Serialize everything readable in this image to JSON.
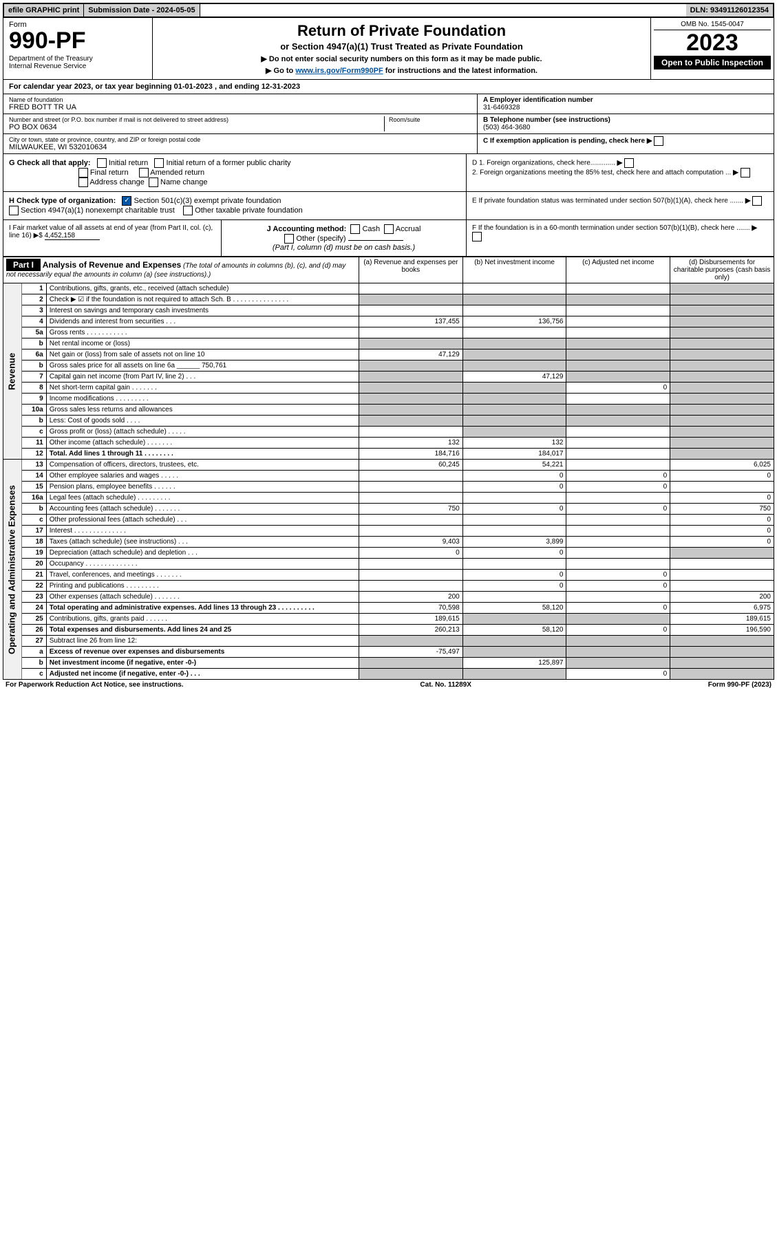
{
  "top": {
    "efile": "efile GRAPHIC print",
    "submission": "Submission Date - 2024-05-05",
    "dln": "DLN: 93491126012354"
  },
  "header": {
    "form_label": "Form",
    "form_number": "990-PF",
    "dept": "Department of the Treasury\nInternal Revenue Service",
    "title": "Return of Private Foundation",
    "subtitle": "or Section 4947(a)(1) Trust Treated as Private Foundation",
    "note1": "▶ Do not enter social security numbers on this form as it may be made public.",
    "note2_pre": "▶ Go to ",
    "note2_link": "www.irs.gov/Form990PF",
    "note2_post": " for instructions and the latest information.",
    "omb": "OMB No. 1545-0047",
    "taxyear": "2023",
    "open_pub": "Open to Public Inspection"
  },
  "cal_year": "For calendar year 2023, or tax year beginning 01-01-2023           , and ending 12-31-2023",
  "name_block": {
    "label": "Name of foundation",
    "value": "FRED BOTT TR UA",
    "addr_label": "Number and street (or P.O. box number if mail is not delivered to street address)",
    "addr": "PO BOX 0634",
    "room_label": "Room/suite",
    "city_label": "City or town, state or province, country, and ZIP or foreign postal code",
    "city": "MILWAUKEE, WI  532010634"
  },
  "right_info": {
    "a_label": "A Employer identification number",
    "a_val": "31-6469328",
    "b_label": "B Telephone number (see instructions)",
    "b_val": "(503) 464-3680",
    "c_label": "C If exemption application is pending, check here",
    "d1": "D 1. Foreign organizations, check here.............",
    "d2": "2. Foreign organizations meeting the 85% test, check here and attach computation ...",
    "e": "E  If private foundation status was terminated under section 507(b)(1)(A), check here .......",
    "f": "F  If the foundation is in a 60-month termination under section 507(b)(1)(B), check here ......."
  },
  "g": {
    "label": "G Check all that apply:",
    "opts": [
      "Initial return",
      "Initial return of a former public charity",
      "Final return",
      "Amended return",
      "Address change",
      "Name change"
    ]
  },
  "h": {
    "label": "H Check type of organization:",
    "opt1": "Section 501(c)(3) exempt private foundation",
    "opt2": "Section 4947(a)(1) nonexempt charitable trust",
    "opt3": "Other taxable private foundation"
  },
  "i": {
    "label": "I Fair market value of all assets at end of year (from Part II, col. (c), line 16) ▶$",
    "value": "4,452,158"
  },
  "j": {
    "label": "J Accounting method:",
    "cash": "Cash",
    "accrual": "Accrual",
    "other": "Other (specify)",
    "note": "(Part I, column (d) must be on cash basis.)"
  },
  "partI": {
    "tag": "Part I",
    "title": "Analysis of Revenue and Expenses",
    "sub": "(The total of amounts in columns (b), (c), and (d) may not necessarily equal the amounts in column (a) (see instructions).)",
    "cols": {
      "a": "(a)   Revenue and expenses per books",
      "b": "(b)   Net investment income",
      "c": "(c)   Adjusted net income",
      "d": "(d)   Disbursements for charitable purposes (cash basis only)"
    }
  },
  "side_labels": {
    "rev": "Revenue",
    "exp": "Operating and Administrative Expenses"
  },
  "rows": [
    {
      "n": "1",
      "desc": "Contributions, gifts, grants, etc., received (attach schedule)",
      "a": "",
      "b": "",
      "c": "",
      "d": "",
      "shade_d": true
    },
    {
      "n": "2",
      "desc": "Check ▶ ☑ if the foundation is not required to attach Sch. B     .  .  .  .  .  .  .  .  .  .  .  .  .  .  .",
      "a": "",
      "b": "",
      "c": "",
      "d": "",
      "shade_all": true
    },
    {
      "n": "3",
      "desc": "Interest on savings and temporary cash investments",
      "a": "",
      "b": "",
      "c": "",
      "d": "",
      "shade_d": true
    },
    {
      "n": "4",
      "desc": "Dividends and interest from securities   .   .   .",
      "a": "137,455",
      "b": "136,756",
      "c": "",
      "d": "",
      "shade_d": true
    },
    {
      "n": "5a",
      "desc": "Gross rents   .   .   .   .   .   .   .   .   .   .   .",
      "a": "",
      "b": "",
      "c": "",
      "d": "",
      "shade_d": true
    },
    {
      "n": "b",
      "desc": "Net rental income or (loss)",
      "a": "",
      "b": "",
      "c": "",
      "d": "",
      "shade_all": true
    },
    {
      "n": "6a",
      "desc": "Net gain or (loss) from sale of assets not on line 10",
      "a": "47,129",
      "b": "",
      "c": "",
      "d": "",
      "shade_bcd": true
    },
    {
      "n": "b",
      "desc": "Gross sales price for all assets on line 6a ______ 750,761",
      "a": "",
      "b": "",
      "c": "",
      "d": "",
      "shade_all": true
    },
    {
      "n": "7",
      "desc": "Capital gain net income (from Part IV, line 2)   .   .   .",
      "a": "",
      "b": "47,129",
      "c": "",
      "d": "",
      "shade_a": true,
      "shade_cd": true
    },
    {
      "n": "8",
      "desc": "Net short-term capital gain   .   .   .   .   .   .   .",
      "a": "",
      "b": "",
      "c": "0",
      "d": "",
      "shade_ab": true,
      "shade_d": true
    },
    {
      "n": "9",
      "desc": "Income modifications   .   .   .   .   .   .   .   .   .",
      "a": "",
      "b": "",
      "c": "",
      "d": "",
      "shade_ab": true,
      "shade_d": true
    },
    {
      "n": "10a",
      "desc": "Gross sales less returns and allowances",
      "a": "",
      "b": "",
      "c": "",
      "d": "",
      "shade_all": true
    },
    {
      "n": "b",
      "desc": "Less: Cost of goods sold   .   .   .   .",
      "a": "",
      "b": "",
      "c": "",
      "d": "",
      "shade_all": true
    },
    {
      "n": "c",
      "desc": "Gross profit or (loss) (attach schedule)   .   .   .   .   .",
      "a": "",
      "b": "",
      "c": "",
      "d": "",
      "shade_b": true,
      "shade_d": true
    },
    {
      "n": "11",
      "desc": "Other income (attach schedule)   .   .   .   .   .   .   .",
      "a": "132",
      "b": "132",
      "c": "",
      "d": "",
      "shade_d": true
    },
    {
      "n": "12",
      "desc": "Total. Add lines 1 through 11   .   .   .   .   .   .   .   .",
      "a": "184,716",
      "b": "184,017",
      "c": "",
      "d": "",
      "bold": true,
      "shade_d": true
    },
    {
      "n": "13",
      "desc": "Compensation of officers, directors, trustees, etc.",
      "a": "60,245",
      "b": "54,221",
      "c": "",
      "d": "6,025"
    },
    {
      "n": "14",
      "desc": "Other employee salaries and wages   .   .   .   .   .",
      "a": "",
      "b": "0",
      "c": "0",
      "d": "0"
    },
    {
      "n": "15",
      "desc": "Pension plans, employee benefits   .   .   .   .   .   .",
      "a": "",
      "b": "0",
      "c": "0",
      "d": ""
    },
    {
      "n": "16a",
      "desc": "Legal fees (attach schedule)  .   .   .   .   .   .   .   .   .",
      "a": "",
      "b": "",
      "c": "",
      "d": "0"
    },
    {
      "n": "b",
      "desc": "Accounting fees (attach schedule)  .   .   .   .   .   .   .",
      "a": "750",
      "b": "0",
      "c": "0",
      "d": "750"
    },
    {
      "n": "c",
      "desc": "Other professional fees (attach schedule)   .   .   .",
      "a": "",
      "b": "",
      "c": "",
      "d": "0"
    },
    {
      "n": "17",
      "desc": "Interest   .   .   .   .   .   .   .   .   .   .   .   .   .   .",
      "a": "",
      "b": "",
      "c": "",
      "d": "0"
    },
    {
      "n": "18",
      "desc": "Taxes (attach schedule) (see instructions)   .   .   .",
      "a": "9,403",
      "b": "3,899",
      "c": "",
      "d": "0"
    },
    {
      "n": "19",
      "desc": "Depreciation (attach schedule) and depletion   .   .   .",
      "a": "0",
      "b": "0",
      "c": "",
      "d": "",
      "shade_d": true
    },
    {
      "n": "20",
      "desc": "Occupancy  .   .   .   .   .   .   .   .   .   .   .   .   .   .",
      "a": "",
      "b": "",
      "c": "",
      "d": ""
    },
    {
      "n": "21",
      "desc": "Travel, conferences, and meetings  .   .   .   .   .   .   .",
      "a": "",
      "b": "0",
      "c": "0",
      "d": ""
    },
    {
      "n": "22",
      "desc": "Printing and publications  .   .   .   .   .   .   .   .   .",
      "a": "",
      "b": "0",
      "c": "0",
      "d": ""
    },
    {
      "n": "23",
      "desc": "Other expenses (attach schedule)  .   .   .   .   .   .   .",
      "a": "200",
      "b": "",
      "c": "",
      "d": "200"
    },
    {
      "n": "24",
      "desc": "Total operating and administrative expenses. Add lines 13 through 23   .   .   .   .   .   .   .   .   .   .",
      "a": "70,598",
      "b": "58,120",
      "c": "0",
      "d": "6,975",
      "bold": true
    },
    {
      "n": "25",
      "desc": "Contributions, gifts, grants paid   .   .   .   .   .   .",
      "a": "189,615",
      "b": "",
      "c": "",
      "d": "189,615",
      "shade_bc": true
    },
    {
      "n": "26",
      "desc": "Total expenses and disbursements. Add lines 24 and 25",
      "a": "260,213",
      "b": "58,120",
      "c": "0",
      "d": "196,590",
      "bold": true
    },
    {
      "n": "27",
      "desc": "Subtract line 26 from line 12:",
      "a": "",
      "b": "",
      "c": "",
      "d": "",
      "shade_all": true
    },
    {
      "n": "a",
      "desc": "Excess of revenue over expenses and disbursements",
      "a": "-75,497",
      "b": "",
      "c": "",
      "d": "",
      "bold": true,
      "shade_bcd": true
    },
    {
      "n": "b",
      "desc": "Net investment income (if negative, enter -0-)",
      "a": "",
      "b": "125,897",
      "c": "",
      "d": "",
      "bold": true,
      "shade_a": true,
      "shade_cd": true
    },
    {
      "n": "c",
      "desc": "Adjusted net income (if negative, enter -0-)   .   .   .",
      "a": "",
      "b": "",
      "c": "0",
      "d": "",
      "bold": true,
      "shade_ab": true,
      "shade_d": true
    }
  ],
  "footer": {
    "left": "For Paperwork Reduction Act Notice, see instructions.",
    "mid": "Cat. No. 11289X",
    "right": "Form 990-PF (2023)"
  }
}
